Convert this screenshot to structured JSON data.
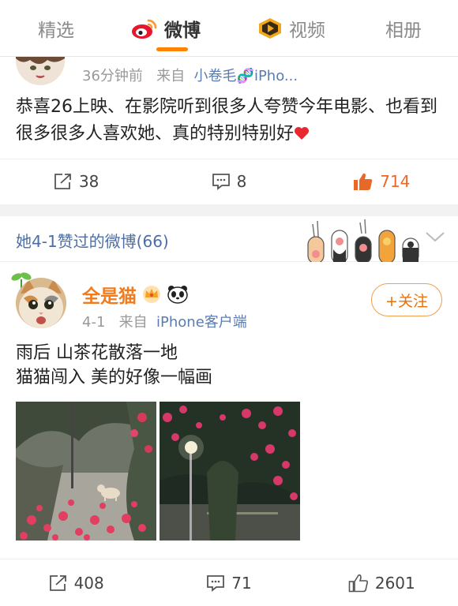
{
  "tabs": [
    {
      "label": "精选",
      "active": false
    },
    {
      "label": "微博",
      "active": true,
      "icon": "weibo-logo-icon"
    },
    {
      "label": "视频",
      "active": false,
      "icon": "video-badge-icon"
    },
    {
      "label": "相册",
      "active": false
    }
  ],
  "post1": {
    "time": "36分钟前",
    "from_prefix": "来自",
    "source": "小卷毛🧬iPho...",
    "text": "恭喜26上映、在影院听到很多人夸赞今年电影、也看到很多很多人喜欢她、真的特别特别好",
    "emoji": "heart",
    "repost_count": "38",
    "comment_count": "8",
    "like_count": "714",
    "liked": true
  },
  "section": {
    "title": "她4-1赞过的微博(66)"
  },
  "post2": {
    "username": "全是猫",
    "badges": [
      "crown-badge-icon",
      "panda-badge-icon"
    ],
    "follow_label": "+关注",
    "time": "4-1",
    "from_prefix": "来自",
    "source": "iPhone客户端",
    "text_line1": "雨后 山茶花散落一地",
    "text_line2": "猫猫闯入 美的好像一幅画",
    "photos": [
      "rainy-street-camellia-cat-photo",
      "night-camellia-park-photo"
    ],
    "repost_count": "408",
    "comment_count": "71",
    "like_count": "2601",
    "liked": false
  },
  "colors": {
    "accent_orange": "#ff8200",
    "link_blue": "#5b7cb1",
    "like_orange": "#e8682a"
  }
}
